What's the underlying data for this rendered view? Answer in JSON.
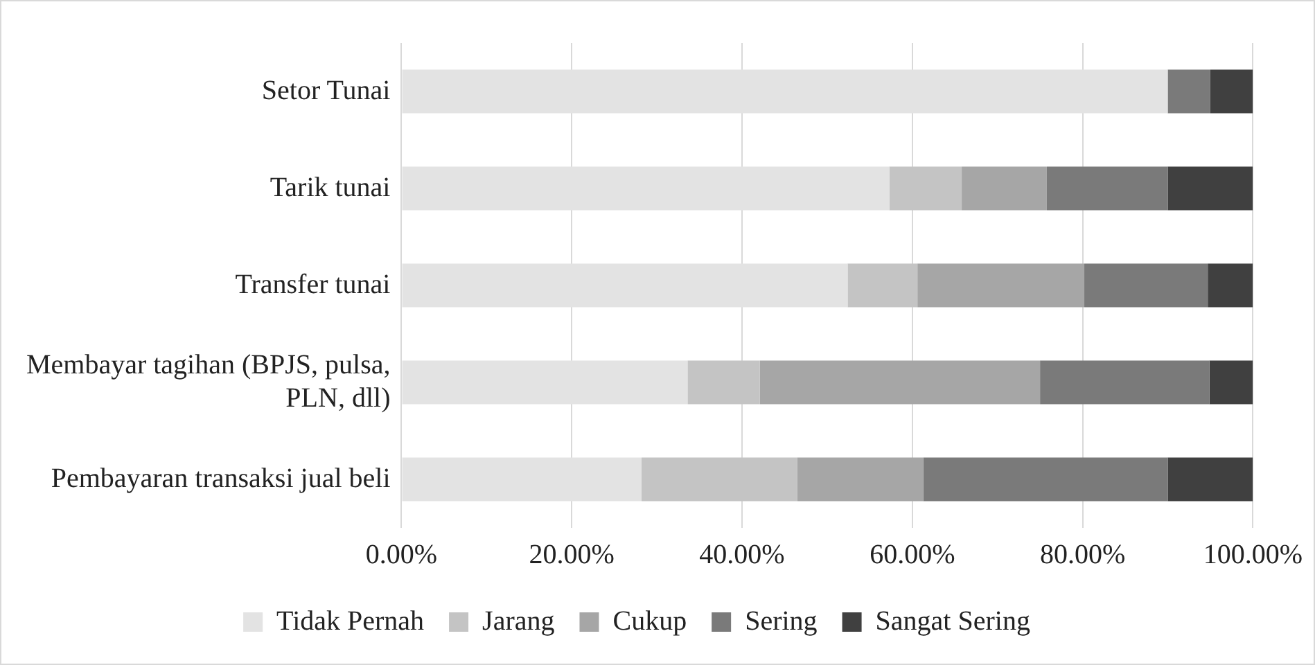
{
  "chart_data": {
    "type": "bar",
    "orientation": "horizontal",
    "stacked": true,
    "categories": [
      "Setor Tunai",
      "Tarik tunai",
      "Transfer tunai",
      "Membayar tagihan (BPJS, pulsa, PLN, dll)",
      "Pembayaran transaksi jual beli"
    ],
    "series": [
      {
        "name": "Tidak Pernah",
        "color": "#e3e3e3",
        "values": [
          90,
          57.3,
          52.4,
          33.6,
          28.2
        ]
      },
      {
        "name": "Jarang",
        "color": "#c4c4c4",
        "values": [
          0,
          8.5,
          8.2,
          8.5,
          18.3
        ]
      },
      {
        "name": "Cukup",
        "color": "#a6a6a6",
        "values": [
          0,
          10,
          19.6,
          32.9,
          14.8
        ]
      },
      {
        "name": "Sering",
        "color": "#7a7a7a",
        "values": [
          5,
          14.2,
          14.5,
          19.9,
          28.7
        ]
      },
      {
        "name": "Sangat Sering",
        "color": "#404040",
        "values": [
          5,
          10,
          5.3,
          5.1,
          10
        ]
      }
    ],
    "xlim": [
      0,
      100
    ],
    "xticks": [
      {
        "value": 0,
        "label": "0.00%"
      },
      {
        "value": 20,
        "label": "20.00%"
      },
      {
        "value": 40,
        "label": "40.00%"
      },
      {
        "value": 60,
        "label": "60.00%"
      },
      {
        "value": 80,
        "label": "80.00%"
      },
      {
        "value": 100,
        "label": "100.00%"
      }
    ],
    "grid": "x",
    "legend": "bottom"
  }
}
